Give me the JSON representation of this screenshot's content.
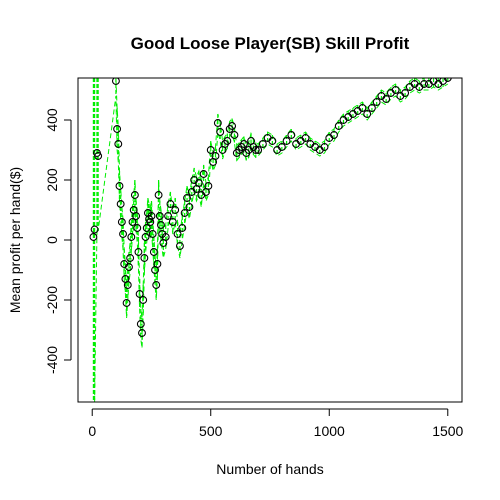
{
  "chart_data": {
    "type": "scatter",
    "title": "Good Loose Player(SB) Skill Profit",
    "xlabel": "Number of hands",
    "ylabel": "Mean profit per hand($)",
    "xlim": [
      -60,
      1560
    ],
    "ylim": [
      -540,
      540
    ],
    "x_ticks": [
      0,
      500,
      1000,
      1500
    ],
    "y_ticks": [
      -400,
      -200,
      0,
      200,
      400
    ],
    "grid": false,
    "colors": {
      "points": "#000000",
      "bands": "#00ee00",
      "frame": "#000000"
    },
    "series": [
      {
        "style": "circle-open",
        "x": [
          5,
          10,
          20,
          25,
          100,
          105,
          110,
          115,
          120,
          125,
          130,
          135,
          140,
          145,
          150,
          155,
          160,
          165,
          170,
          175,
          180,
          185,
          190,
          195,
          200,
          205,
          210,
          215,
          220,
          225,
          230,
          235,
          240,
          245,
          250,
          255,
          260,
          265,
          270,
          275,
          280,
          285,
          290,
          295,
          300,
          310,
          320,
          330,
          340,
          350,
          360,
          370,
          380,
          390,
          400,
          410,
          420,
          430,
          440,
          450,
          460,
          470,
          480,
          490,
          500,
          510,
          520,
          530,
          540,
          550,
          560,
          570,
          580,
          590,
          600,
          610,
          620,
          630,
          640,
          650,
          660,
          670,
          680,
          690,
          700,
          720,
          740,
          760,
          780,
          800,
          820,
          840,
          860,
          880,
          900,
          920,
          940,
          960,
          980,
          1000,
          1020,
          1040,
          1060,
          1080,
          1100,
          1120,
          1140,
          1160,
          1180,
          1200,
          1220,
          1240,
          1260,
          1280,
          1300,
          1320,
          1340,
          1360,
          1380,
          1400,
          1420,
          1440,
          1460,
          1480,
          1500
        ],
        "y": [
          10,
          35,
          290,
          280,
          530,
          370,
          320,
          180,
          120,
          60,
          20,
          -80,
          -130,
          -210,
          -150,
          -90,
          -60,
          10,
          60,
          100,
          150,
          80,
          40,
          -40,
          -180,
          -280,
          -310,
          -200,
          -60,
          10,
          40,
          90,
          70,
          60,
          80,
          20,
          -40,
          -100,
          -150,
          -80,
          150,
          80,
          50,
          20,
          -10,
          10,
          80,
          120,
          60,
          100,
          20,
          -20,
          40,
          90,
          140,
          110,
          160,
          200,
          170,
          190,
          150,
          220,
          160,
          180,
          300,
          260,
          280,
          390,
          360,
          300,
          320,
          330,
          370,
          380,
          350,
          290,
          300,
          310,
          320,
          290,
          300,
          330,
          310,
          300,
          300,
          320,
          340,
          330,
          300,
          310,
          330,
          350,
          320,
          330,
          340,
          320,
          310,
          300,
          310,
          340,
          350,
          380,
          400,
          410,
          420,
          430,
          440,
          420,
          440,
          460,
          480,
          470,
          490,
          500,
          480,
          490,
          510,
          520,
          510,
          520,
          520,
          530,
          520,
          530,
          540
        ]
      },
      {
        "name": "",
        "style": "dashed",
        "x": [
          5,
          10,
          20,
          25,
          100,
          105,
          110,
          115,
          120,
          125,
          130,
          135,
          140,
          145,
          150,
          155,
          160,
          165,
          170,
          175,
          180,
          185,
          190,
          195,
          200,
          205,
          210,
          215,
          220,
          225,
          230,
          235,
          240,
          245,
          250,
          255,
          260,
          265,
          270,
          275,
          280,
          285,
          290,
          295,
          300,
          310,
          320,
          330,
          340,
          350,
          360,
          370,
          380,
          390,
          400,
          410,
          420,
          430,
          440,
          450,
          460,
          470,
          480,
          490,
          500,
          510,
          520,
          530,
          540,
          550,
          560,
          570,
          580,
          590,
          600,
          610,
          620,
          630,
          640,
          650,
          660,
          670,
          680,
          690,
          700,
          720,
          740,
          760,
          780,
          800,
          820,
          840,
          860,
          880,
          900,
          920,
          940,
          960,
          980,
          1000,
          1020,
          1040,
          1060,
          1080,
          1100,
          1120,
          1140,
          1160,
          1180,
          1200,
          1220,
          1240,
          1260,
          1280,
          1300,
          1320,
          1340,
          1360,
          1380,
          1400,
          1420,
          1440,
          1460,
          1480,
          1500
        ],
        "upper": [
          540,
          540,
          540,
          540,
          540,
          440,
          380,
          230,
          170,
          110,
          70,
          -30,
          -80,
          -160,
          -100,
          -40,
          -10,
          60,
          110,
          150,
          200,
          130,
          90,
          10,
          -130,
          -230,
          -260,
          -150,
          -10,
          60,
          90,
          140,
          120,
          110,
          130,
          70,
          10,
          -50,
          -100,
          -30,
          200,
          130,
          100,
          70,
          40,
          50,
          120,
          160,
          100,
          140,
          60,
          20,
          80,
          130,
          180,
          150,
          200,
          240,
          210,
          230,
          190,
          250,
          190,
          210,
          330,
          290,
          310,
          420,
          390,
          330,
          345,
          355,
          395,
          405,
          375,
          315,
          325,
          335,
          345,
          315,
          325,
          355,
          335,
          325,
          320,
          340,
          360,
          350,
          320,
          330,
          350,
          370,
          340,
          350,
          360,
          340,
          330,
          320,
          330,
          360,
          370,
          400,
          420,
          430,
          440,
          450,
          460,
          440,
          460,
          480,
          500,
          490,
          510,
          520,
          500,
          510,
          530,
          540,
          530,
          540,
          540,
          540,
          540,
          540,
          540
        ],
        "lower": [
          -540,
          -540,
          40,
          30,
          480,
          300,
          260,
          130,
          70,
          10,
          -30,
          -130,
          -180,
          -260,
          -200,
          -140,
          -110,
          -40,
          10,
          50,
          100,
          30,
          -10,
          -90,
          -230,
          -330,
          -360,
          -250,
          -110,
          -40,
          -10,
          40,
          20,
          10,
          30,
          -30,
          -90,
          -150,
          -200,
          -130,
          100,
          30,
          0,
          -30,
          -60,
          -30,
          40,
          80,
          20,
          60,
          -20,
          -60,
          0,
          50,
          100,
          70,
          120,
          160,
          130,
          150,
          110,
          190,
          130,
          150,
          270,
          230,
          250,
          360,
          330,
          270,
          295,
          305,
          345,
          355,
          325,
          265,
          275,
          285,
          295,
          265,
          275,
          305,
          285,
          275,
          280,
          300,
          320,
          310,
          280,
          290,
          310,
          330,
          300,
          310,
          320,
          300,
          290,
          280,
          290,
          320,
          330,
          360,
          380,
          390,
          400,
          410,
          420,
          400,
          420,
          440,
          460,
          450,
          470,
          480,
          460,
          470,
          490,
          500,
          490,
          500,
          500,
          510,
          500,
          510,
          520
        ]
      }
    ]
  }
}
